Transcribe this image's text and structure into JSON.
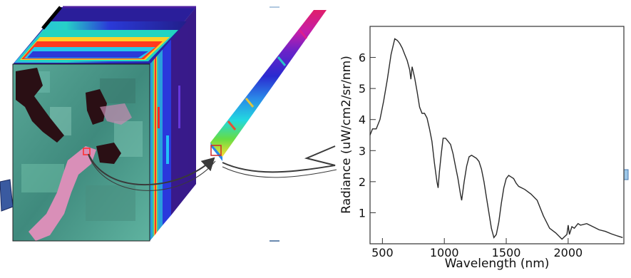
{
  "chart_data": {
    "type": "line",
    "xlabel": "Wavelength (nm)",
    "ylabel": "Radiance (uW/cm2/sr/nm)",
    "xlim": [
      400,
      2450
    ],
    "ylim": [
      0,
      7
    ],
    "x_ticks": [
      500,
      1000,
      1500,
      2000
    ],
    "y_ticks": [
      1,
      2,
      3,
      4,
      5,
      6
    ],
    "grid": false,
    "series": [
      {
        "x": [
          400,
          420,
          450,
          480,
          510,
          540,
          570,
          600,
          620,
          640,
          660,
          680,
          700,
          720,
          730,
          740,
          760,
          780,
          800,
          820,
          840,
          860,
          880,
          900,
          920,
          940,
          950,
          960,
          975,
          990,
          1010,
          1030,
          1050,
          1070,
          1090,
          1110,
          1130,
          1140,
          1160,
          1180,
          1200,
          1220,
          1240,
          1260,
          1280,
          1300,
          1320,
          1340,
          1360,
          1380,
          1400,
          1420,
          1440,
          1460,
          1480,
          1500,
          1520,
          1540,
          1560,
          1580,
          1600,
          1650,
          1700,
          1750,
          1800,
          1850,
          1900,
          1950,
          1990,
          2000,
          2010,
          2030,
          2050,
          2080,
          2100,
          2150,
          2200,
          2250,
          2300,
          2350,
          2400,
          2440
        ],
        "y": [
          3.5,
          3.7,
          3.7,
          4.0,
          4.6,
          5.3,
          6.1,
          6.6,
          6.55,
          6.45,
          6.3,
          6.1,
          5.9,
          5.6,
          5.3,
          5.7,
          5.35,
          4.9,
          4.4,
          4.2,
          4.2,
          4.05,
          3.7,
          3.3,
          2.6,
          2.0,
          1.8,
          2.3,
          2.9,
          3.4,
          3.4,
          3.3,
          3.2,
          2.9,
          2.5,
          2.1,
          1.6,
          1.4,
          2.0,
          2.5,
          2.8,
          2.85,
          2.8,
          2.75,
          2.65,
          2.4,
          2.0,
          1.5,
          1.0,
          0.5,
          0.2,
          0.3,
          0.7,
          1.3,
          1.8,
          2.1,
          2.2,
          2.15,
          2.1,
          1.95,
          1.85,
          1.75,
          1.6,
          1.4,
          0.9,
          0.5,
          0.35,
          0.15,
          0.3,
          0.6,
          0.3,
          0.55,
          0.5,
          0.65,
          0.6,
          0.65,
          0.55,
          0.45,
          0.4,
          0.32,
          0.25,
          0.2
        ]
      }
    ]
  },
  "colors": {
    "line": "#2a2a2a",
    "arrow": "#3a3a3a",
    "vegetation": "#4f9e8f",
    "water": "#2a0f14",
    "urban": "#d98fb8",
    "cube_purple": "#3a1a6e",
    "cube_blue": "#2b2bd4"
  }
}
